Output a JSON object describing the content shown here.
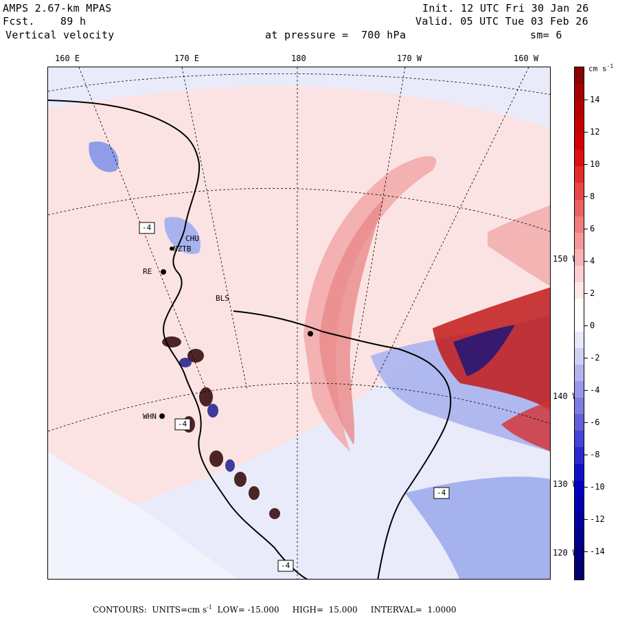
{
  "header": {
    "model": "AMPS 2.67-km MPAS",
    "fcst": "Fcst.    89 h",
    "field": "Vertical velocity",
    "init": "Init. 12 UTC Fri 30 Jan 26",
    "valid": "Valid. 05 UTC Tue 03 Feb 26",
    "pressure": "at pressure =  700 hPa",
    "smooth": "sm= 6"
  },
  "longitude_labels": [
    "160 E",
    "170 E",
    "180",
    "170 W",
    "160 W"
  ],
  "latitude_labels": [
    "150 W",
    "140 W",
    "130 W",
    "120 W"
  ],
  "colorbar": {
    "unit_label": "cm s",
    "unit_exponent": "-1",
    "tick_labels": [
      "14",
      "12",
      "10",
      "8",
      "6",
      "4",
      "2",
      "0",
      "-2",
      "-4",
      "-6",
      "-8",
      "-10",
      "-12",
      "-14"
    ],
    "colors": [
      "#8b0000",
      "#a50000",
      "#b50000",
      "#c40000",
      "#d20000",
      "#dc1010",
      "#e52a2a",
      "#ea4444",
      "#ed6060",
      "#f07c7c",
      "#f49898",
      "#f7b4b4",
      "#fbd0d0",
      "#fde8e8",
      "#ffffff",
      "#ffffff",
      "#e8e8fb",
      "#d0d0f6",
      "#b4b4ef",
      "#9898e8",
      "#7c7ce2",
      "#6060dc",
      "#4444d6",
      "#2a2ad0",
      "#1010c8",
      "#0000c0",
      "#0000b0",
      "#0000a0",
      "#00008f",
      "#00007f",
      "#00006f"
    ]
  },
  "stations": [
    "WHN",
    "RE",
    "NZTB",
    "CHU",
    "BLS"
  ],
  "map_labels": [
    "-4",
    "-4",
    "-4",
    "-4"
  ],
  "footer": {
    "contours": "CONTOURS:  UNITS=cm s",
    "exp": "-1",
    "low": "LOW= -15.000",
    "high": "HIGH=  15.000",
    "interval": "INTERVAL=  1.0000"
  }
}
